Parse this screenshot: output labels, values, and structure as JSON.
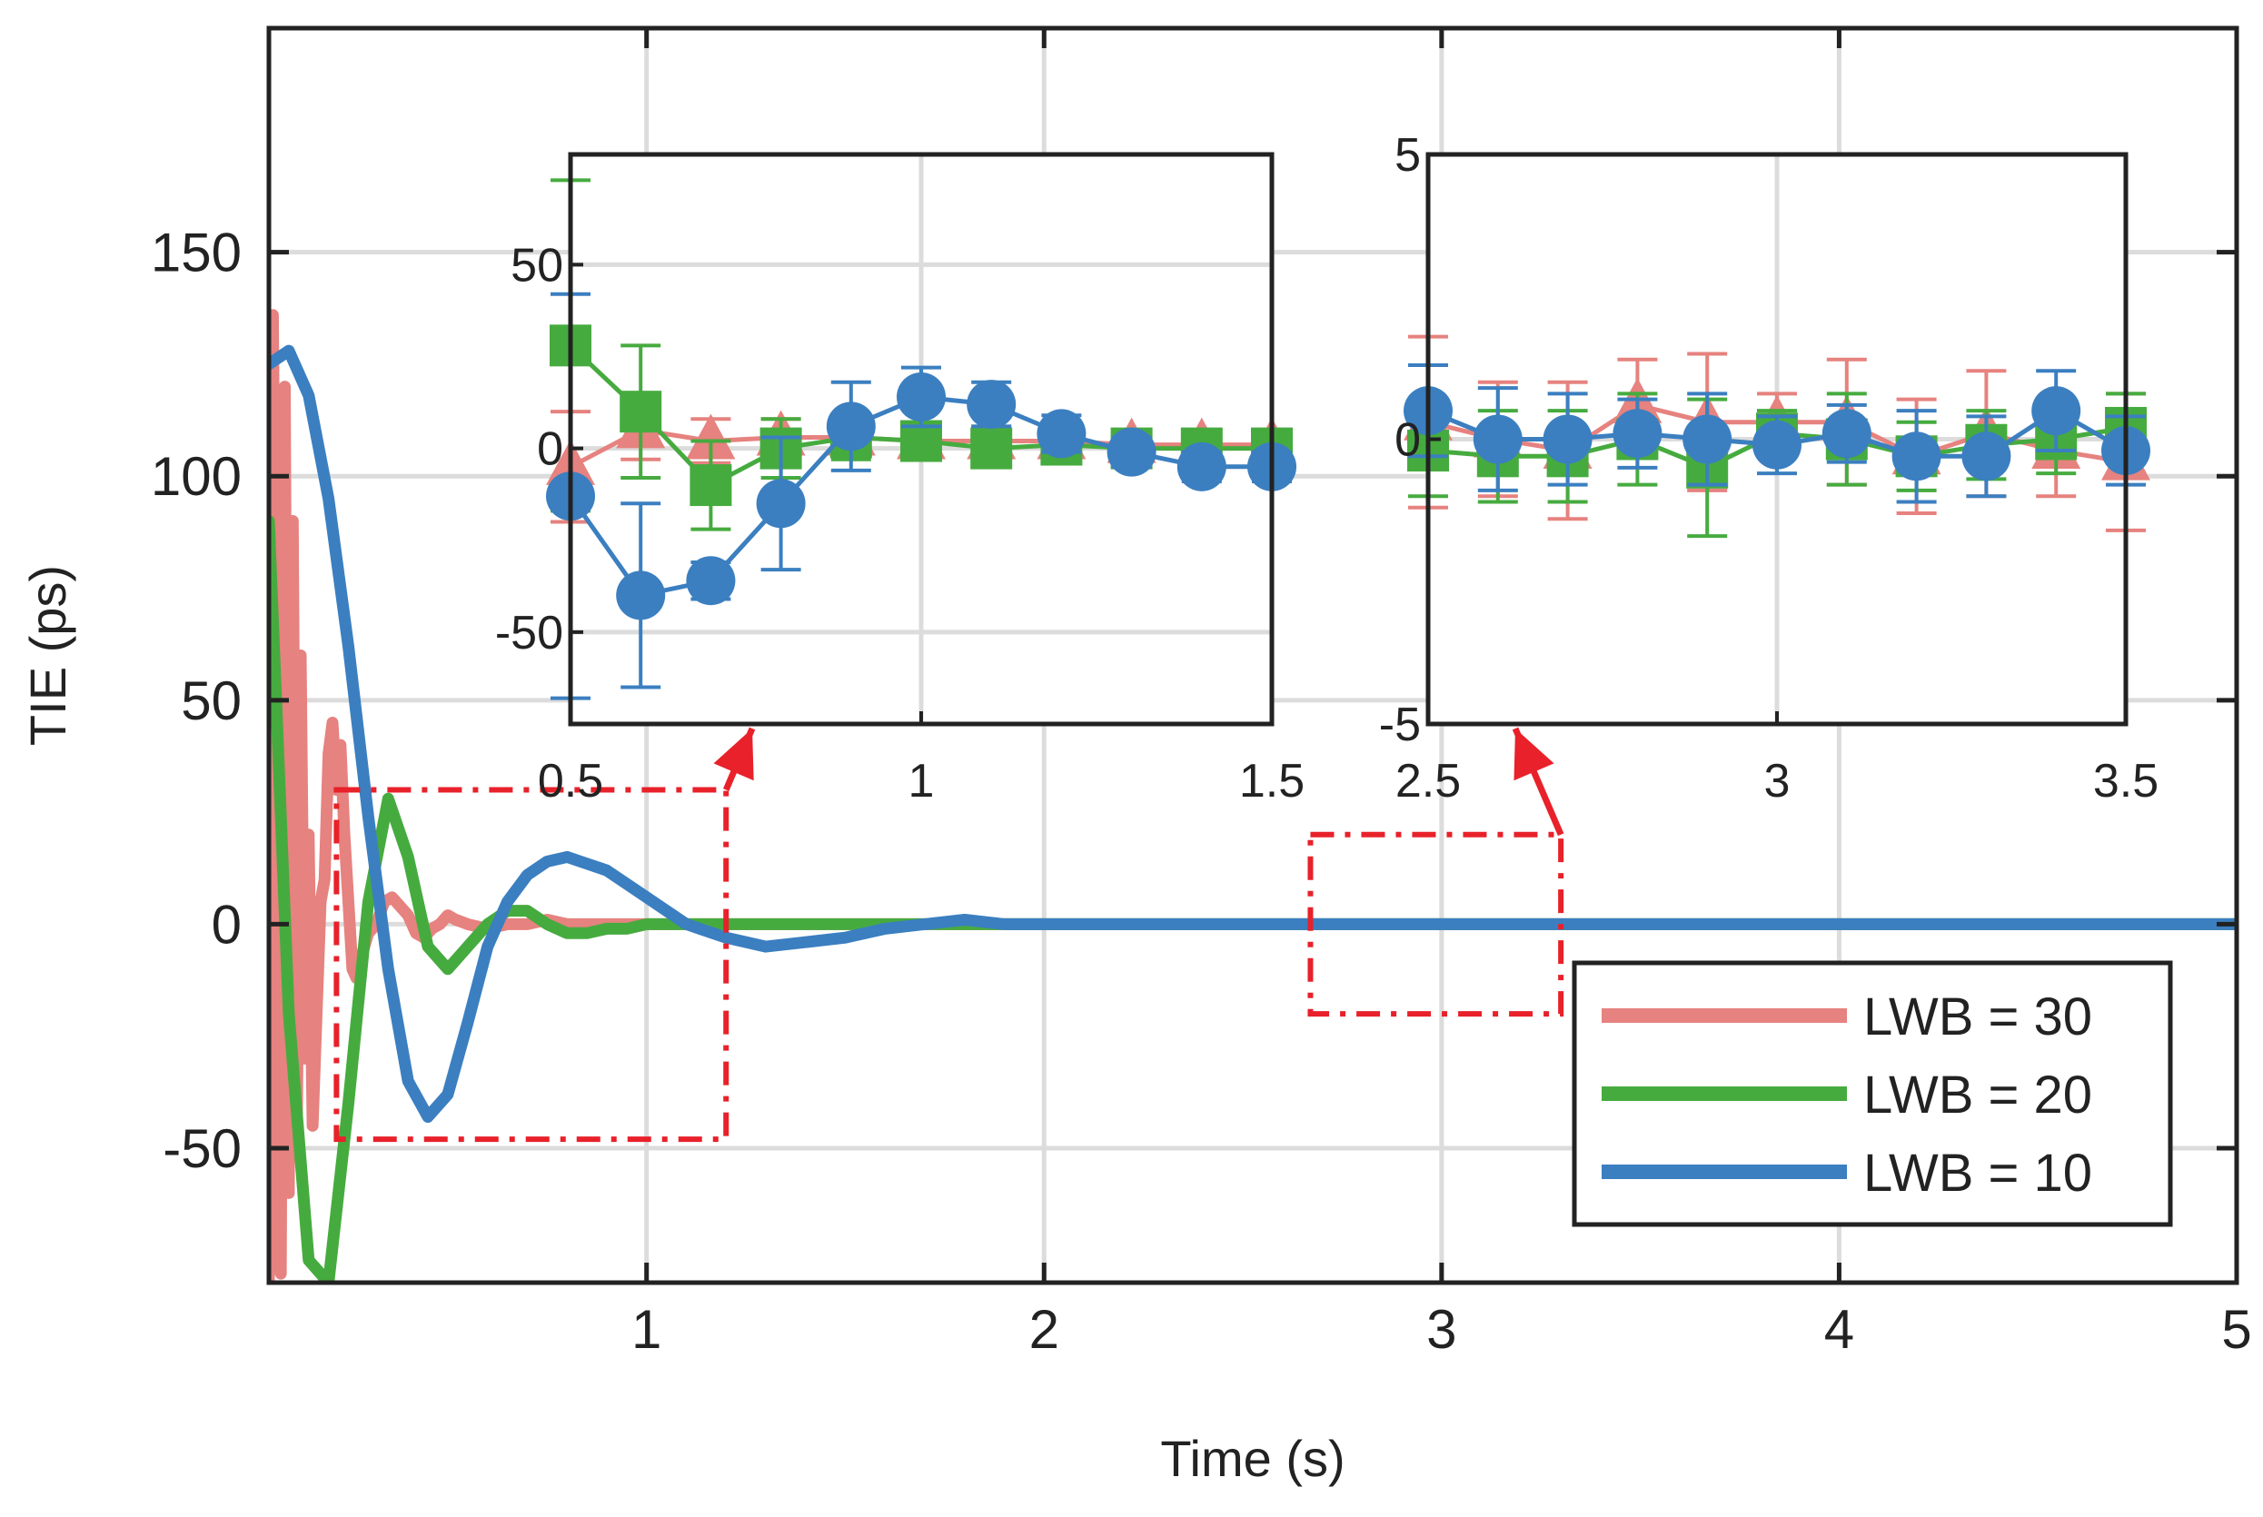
{
  "chart_data": {
    "type": "line",
    "xlabel": "Time (s)",
    "ylabel": "TIE (ps)",
    "xlim": [
      0.05,
      5
    ],
    "ylim": [
      -80,
      200
    ],
    "xticks": [
      1,
      2,
      3,
      4,
      5
    ],
    "yticks": [
      -50,
      0,
      50,
      100,
      150
    ],
    "legend_position": "bottom-right",
    "colors": {
      "LWB = 30": "#e6827f",
      "LWB = 20": "#46ab3f",
      "LWB = 10": "#3b7fc0",
      "zoom": "#e8212a"
    },
    "series": [
      {
        "name": "LWB = 30",
        "x": [
          0.05,
          0.06,
          0.07,
          0.08,
          0.09,
          0.1,
          0.11,
          0.12,
          0.13,
          0.14,
          0.15,
          0.16,
          0.17,
          0.18,
          0.19,
          0.2,
          0.21,
          0.22,
          0.23,
          0.24,
          0.25,
          0.26,
          0.27,
          0.28,
          0.29,
          0.3,
          0.32,
          0.34,
          0.36,
          0.38,
          0.4,
          0.42,
          0.44,
          0.46,
          0.48,
          0.5,
          0.52,
          0.55,
          0.6,
          0.65,
          0.7,
          0.75,
          0.8,
          0.85,
          0.9,
          0.95,
          1.0,
          1.1,
          1.2,
          1.4,
          1.6,
          2.0,
          3.0,
          4.0,
          5.0
        ],
        "y": [
          -80,
          136,
          30,
          -78,
          120,
          -60,
          90,
          -50,
          60,
          -30,
          20,
          -45,
          -20,
          5,
          10,
          38,
          45,
          30,
          40,
          20,
          5,
          -10,
          -12,
          -8,
          -5,
          -2,
          0,
          5,
          6,
          4,
          2,
          -2,
          -3,
          -1,
          0,
          2,
          1,
          0,
          -1,
          0,
          0,
          1,
          0,
          0,
          0,
          0,
          0,
          0,
          0,
          0,
          0,
          0,
          0,
          0,
          0
        ]
      },
      {
        "name": "LWB = 20",
        "x": [
          0.05,
          0.1,
          0.15,
          0.2,
          0.25,
          0.3,
          0.35,
          0.4,
          0.45,
          0.5,
          0.55,
          0.6,
          0.65,
          0.7,
          0.75,
          0.8,
          0.85,
          0.9,
          0.95,
          1.0,
          1.1,
          1.2,
          1.4,
          1.6,
          2.0,
          3.0,
          4.0,
          5.0
        ],
        "y": [
          90,
          -20,
          -75,
          -80,
          -40,
          5,
          28,
          15,
          -5,
          -10,
          -5,
          0,
          3,
          3,
          0,
          -2,
          -2,
          -1,
          -1,
          0,
          0,
          0,
          0,
          0,
          0,
          0,
          0,
          0
        ]
      },
      {
        "name": "LWB = 10",
        "x": [
          0.05,
          0.1,
          0.15,
          0.2,
          0.25,
          0.3,
          0.35,
          0.4,
          0.45,
          0.5,
          0.55,
          0.6,
          0.65,
          0.7,
          0.75,
          0.8,
          0.9,
          1.0,
          1.1,
          1.2,
          1.3,
          1.4,
          1.5,
          1.6,
          1.7,
          1.8,
          1.9,
          2.0,
          3.0,
          4.0,
          5.0
        ],
        "y": [
          125,
          128,
          118,
          95,
          62,
          24,
          -10,
          -35,
          -43,
          -38,
          -22,
          -5,
          5,
          11,
          14,
          15,
          12,
          6,
          0,
          -3,
          -5,
          -4,
          -3,
          -1,
          0,
          1,
          0,
          0,
          0,
          0,
          0
        ]
      }
    ],
    "zoom_boxes": [
      {
        "x": [
          0.22,
          1.2
        ],
        "y": [
          -48,
          30
        ]
      },
      {
        "x": [
          2.67,
          3.3
        ],
        "y": [
          -20,
          20
        ]
      }
    ],
    "insets": [
      {
        "xlim": [
          0.5,
          1.5
        ],
        "ylim": [
          -75,
          80
        ],
        "xticks": [
          0.5,
          1,
          1.5
        ],
        "yticks": [
          -50,
          0,
          50
        ],
        "xtick_labels": [
          "0.5",
          "1",
          "1.5"
        ],
        "ytick_labels": [
          "-50",
          "0",
          "50"
        ],
        "x": [
          0.5,
          0.6,
          0.7,
          0.8,
          0.9,
          1.0,
          1.1,
          1.2,
          1.3,
          1.4,
          1.5
        ],
        "series": [
          {
            "name": "LWB = 30",
            "marker": "triangle",
            "y": [
              -5,
              5,
              2,
              3,
              3,
              2,
              2,
              2,
              1,
              1,
              1
            ],
            "err": [
              15,
              8,
              6,
              5,
              5,
              4,
              4,
              4,
              3,
              3,
              3
            ]
          },
          {
            "name": "LWB = 20",
            "marker": "square",
            "y": [
              28,
              10,
              -10,
              0,
              3,
              2,
              0,
              1,
              0,
              0,
              0
            ],
            "err": [
              45,
              18,
              12,
              8,
              6,
              5,
              5,
              4,
              4,
              3,
              3
            ]
          },
          {
            "name": "LWB = 10",
            "marker": "circle",
            "y": [
              -13,
              -40,
              -36,
              -15,
              6,
              14,
              12,
              4,
              -1,
              -5,
              -5
            ],
            "err": [
              55,
              25,
              5,
              18,
              12,
              8,
              6,
              5,
              4,
              4,
              4
            ]
          }
        ]
      },
      {
        "xlim": [
          2.5,
          3.5
        ],
        "ylim": [
          -5,
          5
        ],
        "xticks": [
          2.5,
          3,
          3.5
        ],
        "yticks": [
          -5,
          0,
          5
        ],
        "xtick_labels": [
          "2.5",
          "3",
          "3.5"
        ],
        "ytick_labels": [
          "-5",
          "0",
          "5"
        ],
        "x": [
          2.5,
          2.6,
          2.7,
          2.8,
          2.9,
          3.0,
          3.1,
          3.2,
          3.3,
          3.4,
          3.5
        ],
        "series": [
          {
            "name": "LWB = 30",
            "marker": "triangle",
            "y": [
              0.3,
              0,
              -0.2,
              0.6,
              0.3,
              0.3,
              0.3,
              -0.3,
              0.1,
              -0.2,
              -0.4
            ],
            "err": [
              1.5,
              1.0,
              1.2,
              0.8,
              1.2,
              0.5,
              1.1,
              1.0,
              1.1,
              0.8,
              1.2
            ]
          },
          {
            "name": "LWB = 20",
            "marker": "square",
            "y": [
              -0.2,
              -0.3,
              -0.3,
              0,
              -0.5,
              0.1,
              0,
              -0.3,
              -0.1,
              0,
              0.2
            ],
            "err": [
              0.8,
              0.8,
              0.8,
              0.8,
              1.2,
              0.4,
              0.8,
              0.6,
              0.6,
              0.6,
              0.6
            ]
          },
          {
            "name": "LWB = 10",
            "marker": "circle",
            "y": [
              0.5,
              0,
              0,
              0.1,
              0,
              -0.1,
              0.1,
              -0.3,
              -0.3,
              0.5,
              -0.2
            ],
            "err": [
              0.8,
              0.9,
              0.8,
              0.6,
              0.8,
              0.5,
              0.5,
              0.8,
              0.7,
              0.7,
              0.6
            ]
          }
        ]
      }
    ]
  }
}
